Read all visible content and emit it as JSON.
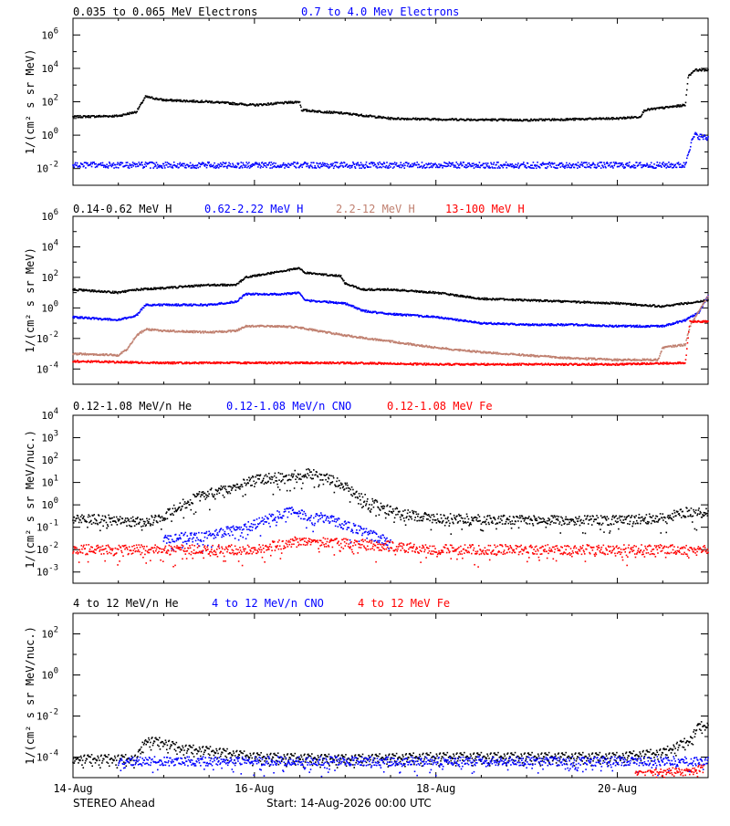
{
  "footer": {
    "spacecraft": "STEREO Ahead",
    "start": "Start: 14-Aug-2026 00:00 UTC"
  },
  "x_axis": {
    "tick_labels": [
      "14-Aug",
      "16-Aug",
      "18-Aug",
      "20-Aug"
    ],
    "tick_days": [
      0,
      2,
      4,
      6
    ],
    "range_days": [
      0,
      7
    ]
  },
  "chart_data": [
    {
      "type": "scatter",
      "ylabel": "1/(cm² s sr MeV)",
      "yscale": "log",
      "ylim_exp": [
        -3,
        7
      ],
      "ytick_exponents": [
        -2,
        0,
        2,
        4,
        6
      ],
      "series": [
        {
          "name": "0.035 to 0.065 MeV Electrons",
          "color": "#000000",
          "points": [
            [
              0,
              1.1
            ],
            [
              0.5,
              1.15
            ],
            [
              0.7,
              1.4
            ],
            [
              0.8,
              2.3
            ],
            [
              1.0,
              2.1
            ],
            [
              1.5,
              2.0
            ],
            [
              2.0,
              1.8
            ],
            [
              2.5,
              2.0
            ],
            [
              2.52,
              1.5
            ],
            [
              3.0,
              1.3
            ],
            [
              3.5,
              1.0
            ],
            [
              4.0,
              0.95
            ],
            [
              5.0,
              0.9
            ],
            [
              5.5,
              0.95
            ],
            [
              6.0,
              1.0
            ],
            [
              6.25,
              1.1
            ],
            [
              6.3,
              1.5
            ],
            [
              6.75,
              1.8
            ],
            [
              6.78,
              3.5
            ],
            [
              6.85,
              3.9
            ],
            [
              7.0,
              3.9
            ]
          ]
        },
        {
          "name": "0.7 to 4.0 Mev Electrons",
          "color": "#0000ff",
          "points": [
            [
              0,
              -1.8
            ],
            [
              1,
              -1.8
            ],
            [
              2,
              -1.8
            ],
            [
              3,
              -1.8
            ],
            [
              4,
              -1.8
            ],
            [
              5,
              -1.8
            ],
            [
              6,
              -1.8
            ],
            [
              6.75,
              -1.8
            ],
            [
              6.78,
              -1.0
            ],
            [
              6.85,
              0.0
            ],
            [
              7.0,
              -0.2
            ]
          ]
        }
      ]
    },
    {
      "type": "scatter",
      "ylabel": "1/(cm² s sr MeV)",
      "yscale": "log",
      "ylim_exp": [
        -5,
        6
      ],
      "ytick_exponents": [
        -4,
        -2,
        0,
        2,
        4,
        6
      ],
      "series": [
        {
          "name": "0.14-0.62 MeV H",
          "color": "#000000",
          "points": [
            [
              0,
              1.2
            ],
            [
              0.5,
              1.0
            ],
            [
              0.7,
              1.2
            ],
            [
              1.0,
              1.3
            ],
            [
              1.5,
              1.5
            ],
            [
              1.8,
              1.5
            ],
            [
              1.9,
              2.0
            ],
            [
              2.3,
              2.4
            ],
            [
              2.5,
              2.6
            ],
            [
              2.55,
              2.3
            ],
            [
              2.95,
              2.1
            ],
            [
              3.0,
              1.6
            ],
            [
              3.2,
              1.2
            ],
            [
              3.5,
              1.2
            ],
            [
              4.0,
              1.0
            ],
            [
              4.5,
              0.6
            ],
            [
              5.0,
              0.5
            ],
            [
              5.5,
              0.4
            ],
            [
              6.0,
              0.3
            ],
            [
              6.5,
              0.1
            ],
            [
              6.75,
              0.3
            ],
            [
              7.0,
              0.5
            ]
          ]
        },
        {
          "name": "0.62-2.22 MeV H",
          "color": "#0000ff",
          "points": [
            [
              0,
              -0.6
            ],
            [
              0.5,
              -0.8
            ],
            [
              0.7,
              -0.5
            ],
            [
              0.8,
              0.2
            ],
            [
              1.0,
              0.2
            ],
            [
              1.5,
              0.2
            ],
            [
              1.8,
              0.4
            ],
            [
              1.9,
              0.9
            ],
            [
              2.3,
              0.9
            ],
            [
              2.5,
              1.0
            ],
            [
              2.55,
              0.5
            ],
            [
              3.0,
              0.3
            ],
            [
              3.2,
              -0.2
            ],
            [
              3.5,
              -0.4
            ],
            [
              4.0,
              -0.6
            ],
            [
              4.5,
              -1.0
            ],
            [
              5.0,
              -1.1
            ],
            [
              5.5,
              -1.1
            ],
            [
              6.0,
              -1.2
            ],
            [
              6.5,
              -1.2
            ],
            [
              6.75,
              -0.8
            ],
            [
              6.9,
              -0.3
            ],
            [
              7.0,
              0.8
            ]
          ]
        },
        {
          "name": "2.2-12 MeV H",
          "color": "#c08070",
          "points": [
            [
              0,
              -3.0
            ],
            [
              0.5,
              -3.1
            ],
            [
              0.6,
              -2.7
            ],
            [
              0.7,
              -1.8
            ],
            [
              0.8,
              -1.4
            ],
            [
              1.0,
              -1.5
            ],
            [
              1.5,
              -1.6
            ],
            [
              1.8,
              -1.5
            ],
            [
              1.9,
              -1.2
            ],
            [
              2.3,
              -1.2
            ],
            [
              2.5,
              -1.3
            ],
            [
              3.0,
              -1.8
            ],
            [
              3.5,
              -2.2
            ],
            [
              4.0,
              -2.6
            ],
            [
              4.5,
              -2.9
            ],
            [
              5.0,
              -3.1
            ],
            [
              5.5,
              -3.3
            ],
            [
              6.0,
              -3.4
            ],
            [
              6.45,
              -3.4
            ],
            [
              6.5,
              -2.6
            ],
            [
              6.75,
              -2.4
            ],
            [
              6.8,
              -1.2
            ],
            [
              7.0,
              0.8
            ]
          ]
        },
        {
          "name": "13-100 MeV H",
          "color": "#ff0000",
          "points": [
            [
              0,
              -3.5
            ],
            [
              1,
              -3.6
            ],
            [
              2,
              -3.6
            ],
            [
              3,
              -3.6
            ],
            [
              4,
              -3.7
            ],
            [
              5,
              -3.7
            ],
            [
              6,
              -3.7
            ],
            [
              6.75,
              -3.6
            ],
            [
              6.8,
              -0.9
            ],
            [
              7.0,
              -0.9
            ]
          ]
        }
      ]
    },
    {
      "type": "scatter",
      "ylabel": "1/(cm² s sr MeV/nuc.)",
      "yscale": "log",
      "ylim_exp": [
        -3.5,
        4
      ],
      "ytick_exponents": [
        -3,
        -2,
        -1,
        0,
        1,
        2,
        3,
        4
      ],
      "series": [
        {
          "name": "0.12-1.08 MeV/n He",
          "color": "#000000",
          "points": [
            [
              0,
              -0.6
            ],
            [
              0.5,
              -0.7
            ],
            [
              0.8,
              -0.8
            ],
            [
              1.0,
              -0.5
            ],
            [
              1.2,
              0.0
            ],
            [
              1.4,
              0.4
            ],
            [
              1.6,
              0.6
            ],
            [
              1.8,
              0.8
            ],
            [
              2.0,
              1.1
            ],
            [
              2.2,
              1.2
            ],
            [
              2.4,
              1.3
            ],
            [
              2.6,
              1.4
            ],
            [
              2.8,
              1.2
            ],
            [
              3.0,
              0.8
            ],
            [
              3.2,
              0.3
            ],
            [
              3.4,
              -0.1
            ],
            [
              3.6,
              -0.4
            ],
            [
              4.0,
              -0.6
            ],
            [
              5.0,
              -0.7
            ],
            [
              6.0,
              -0.7
            ],
            [
              6.5,
              -0.6
            ],
            [
              6.8,
              -0.3
            ],
            [
              7.0,
              -0.4
            ]
          ]
        },
        {
          "name": "0.12-1.08 MeV/n CNO",
          "color": "#0000ff",
          "points": [
            [
              1.0,
              -1.5
            ],
            [
              1.5,
              -1.4
            ],
            [
              2.0,
              -0.9
            ],
            [
              2.2,
              -0.5
            ],
            [
              2.4,
              -0.3
            ],
            [
              2.6,
              -0.5
            ],
            [
              2.8,
              -0.6
            ],
            [
              3.0,
              -0.9
            ],
            [
              3.2,
              -1.2
            ],
            [
              3.5,
              -1.7
            ]
          ]
        },
        {
          "name": "0.12-1.08 MeV Fe",
          "color": "#ff0000",
          "points": [
            [
              0,
              -2.0
            ],
            [
              1,
              -2.0
            ],
            [
              2,
              -2.0
            ],
            [
              2.5,
              -1.6
            ],
            [
              3,
              -1.7
            ],
            [
              4,
              -2.0
            ],
            [
              5,
              -2.0
            ],
            [
              6,
              -2.0
            ],
            [
              7,
              -2.0
            ]
          ]
        }
      ]
    },
    {
      "type": "scatter",
      "ylabel": "1/(cm² s sr MeV/nuc.)",
      "yscale": "log",
      "ylim_exp": [
        -5,
        3
      ],
      "ytick_exponents": [
        -4,
        -2,
        0,
        2
      ],
      "series": [
        {
          "name": "4 to 12 MeV/n He",
          "color": "#000000",
          "points": [
            [
              0,
              -4.1
            ],
            [
              0.7,
              -4.1
            ],
            [
              0.8,
              -3.2
            ],
            [
              1.0,
              -3.3
            ],
            [
              1.2,
              -3.6
            ],
            [
              1.5,
              -3.7
            ],
            [
              2.0,
              -4.0
            ],
            [
              3.0,
              -4.1
            ],
            [
              4.0,
              -4.0
            ],
            [
              5.0,
              -4.0
            ],
            [
              6.0,
              -4.0
            ],
            [
              6.5,
              -3.8
            ],
            [
              6.8,
              -3.2
            ],
            [
              6.9,
              -2.5
            ],
            [
              7.0,
              -2.5
            ]
          ]
        },
        {
          "name": "4 to 12 MeV/n CNO",
          "color": "#0000ff",
          "points": [
            [
              0.5,
              -4.2
            ],
            [
              1,
              -4.2
            ],
            [
              2,
              -4.2
            ],
            [
              3,
              -4.2
            ],
            [
              4,
              -4.2
            ],
            [
              5,
              -4.2
            ],
            [
              6,
              -4.2
            ],
            [
              7,
              -4.2
            ]
          ]
        },
        {
          "name": "4 to 12 MeV Fe",
          "color": "#ff0000",
          "points": [
            [
              6.2,
              -4.9
            ],
            [
              6.95,
              -4.6
            ]
          ]
        }
      ]
    }
  ]
}
